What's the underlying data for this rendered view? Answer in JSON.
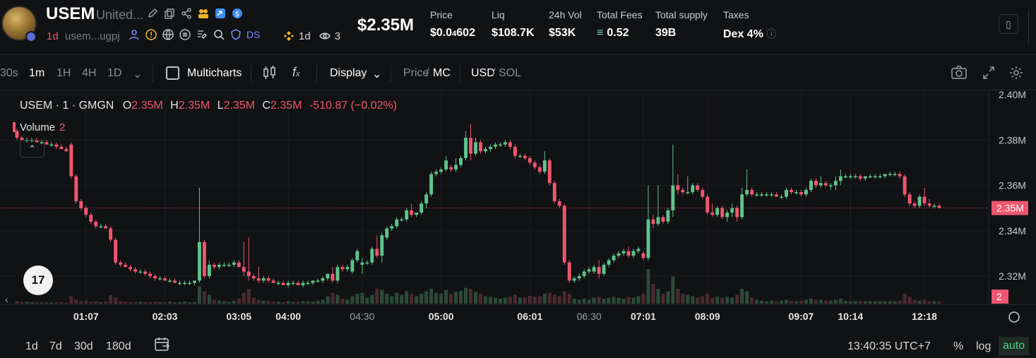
{
  "token": {
    "symbol": "USEM",
    "name_truncated": "United...",
    "age": "1d",
    "address": "usem...ugpj",
    "ds_label": "DS",
    "pair_age": "1d",
    "watchers": "3"
  },
  "market_cap": "$2.35M",
  "stats": [
    {
      "label": "Price",
      "value_main": "$0.0",
      "value_sub": "4",
      "value_tail": "602"
    },
    {
      "label": "Liq",
      "value_main": "$108.7K"
    },
    {
      "label": "24h Vol",
      "value_main": "$53K"
    },
    {
      "label": "Total Fees",
      "value_main": "0.52"
    },
    {
      "label": "Total supply",
      "value_main": "39B"
    },
    {
      "label": "Taxes",
      "value_main": "Dex 4%"
    }
  ],
  "toolbar": {
    "intervals": [
      "30s",
      "1m",
      "1H",
      "4H",
      "1D"
    ],
    "active_interval": "1m",
    "multicharts": "Multicharts",
    "display": "Display",
    "price": "Price",
    "mc": "MC",
    "usd": "USD",
    "sol": "SOL"
  },
  "legend": {
    "title": "USEM · 1 · GMGN",
    "o_label": "O",
    "o": "2.35M",
    "h_label": "H",
    "h": "2.35M",
    "l_label": "L",
    "l": "2.35M",
    "c_label": "C",
    "c": "2.35M",
    "change": "-510.87 (−0.02%)",
    "volume_label": "Volume",
    "volume_value": "2",
    "tv_logo": "17"
  },
  "bottom": {
    "ranges": [
      "1d",
      "7d",
      "30d",
      "180d"
    ],
    "time": "13:40:35 UTC+7",
    "percent": "%",
    "log": "log",
    "auto": "auto"
  },
  "colors": {
    "up": "#5fc48c",
    "down": "#f0566f",
    "bg": "#111214",
    "grid": "#1e2023"
  },
  "chart_data": {
    "type": "candlestick",
    "ylim": [
      2.31,
      2.4
    ],
    "y_ticks": [
      "2.32M",
      "2.34M",
      "2.36M",
      "2.38M",
      "2.40M"
    ],
    "y_tick_values": [
      2.32,
      2.34,
      2.36,
      2.38,
      2.4
    ],
    "last_price_label": "2.35M",
    "last_price": 2.35,
    "volume_label": "2",
    "x_tick_labels": [
      "01:07",
      "02:03",
      "03:05",
      "04:00",
      "04:30",
      "05:00",
      "06:01",
      "06:30",
      "07:01",
      "08:09",
      "09:07",
      "10:14",
      "12:18"
    ],
    "x_tick_index": [
      14,
      30,
      45,
      55,
      70,
      86,
      104,
      116,
      127,
      140,
      159,
      169,
      184
    ],
    "candles": [
      [
        2.384,
        2.385,
        2.38,
        2.381
      ],
      [
        2.381,
        2.382,
        2.38,
        2.38
      ],
      [
        2.38,
        2.381,
        2.379,
        2.38
      ],
      [
        2.38,
        2.381,
        2.379,
        2.38
      ],
      [
        2.38,
        2.381,
        2.379,
        2.379
      ],
      [
        2.379,
        2.38,
        2.378,
        2.379
      ],
      [
        2.379,
        2.38,
        2.378,
        2.378
      ],
      [
        2.378,
        2.379,
        2.377,
        2.378
      ],
      [
        2.378,
        2.379,
        2.376,
        2.377
      ],
      [
        2.377,
        2.378,
        2.376,
        2.376
      ],
      [
        2.376,
        2.377,
        2.375,
        2.375
      ],
      [
        2.378,
        2.379,
        2.363,
        2.364
      ],
      [
        2.364,
        2.365,
        2.352,
        2.353
      ],
      [
        2.353,
        2.354,
        2.349,
        2.35
      ],
      [
        2.35,
        2.351,
        2.346,
        2.347
      ],
      [
        2.347,
        2.348,
        2.343,
        2.344
      ],
      [
        2.344,
        2.345,
        2.341,
        2.342
      ],
      [
        2.342,
        2.343,
        2.341,
        2.342
      ],
      [
        2.342,
        2.343,
        2.341,
        2.341
      ],
      [
        2.341,
        2.342,
        2.335,
        2.336
      ],
      [
        2.336,
        2.337,
        2.325,
        2.326
      ],
      [
        2.326,
        2.327,
        2.324,
        2.325
      ],
      [
        2.325,
        2.326,
        2.324,
        2.324
      ],
      [
        2.324,
        2.325,
        2.322,
        2.323
      ],
      [
        2.323,
        2.324,
        2.321,
        2.322
      ],
      [
        2.322,
        2.323,
        2.321,
        2.322
      ],
      [
        2.322,
        2.323,
        2.32,
        2.321
      ],
      [
        2.321,
        2.322,
        2.319,
        2.32
      ],
      [
        2.32,
        2.321,
        2.318,
        2.319
      ],
      [
        2.319,
        2.32,
        2.318,
        2.319
      ],
      [
        2.319,
        2.32,
        2.318,
        2.318
      ],
      [
        2.318,
        2.319,
        2.317,
        2.318
      ],
      [
        2.318,
        2.319,
        2.317,
        2.317
      ],
      [
        2.317,
        2.318,
        2.316,
        2.317
      ],
      [
        2.317,
        2.318,
        2.316,
        2.317
      ],
      [
        2.317,
        2.318,
        2.316,
        2.317
      ],
      [
        2.317,
        2.318,
        2.316,
        2.318
      ],
      [
        2.318,
        2.359,
        2.317,
        2.335
      ],
      [
        2.335,
        2.336,
        2.319,
        2.32
      ],
      [
        2.32,
        2.327,
        2.319,
        2.325
      ],
      [
        2.325,
        2.326,
        2.323,
        2.324
      ],
      [
        2.324,
        2.326,
        2.323,
        2.325
      ],
      [
        2.325,
        2.326,
        2.324,
        2.325
      ],
      [
        2.325,
        2.326,
        2.324,
        2.325
      ],
      [
        2.325,
        2.327,
        2.324,
        2.326
      ],
      [
        2.326,
        2.327,
        2.324,
        2.324
      ],
      [
        2.324,
        2.335,
        2.32,
        2.322
      ],
      [
        2.322,
        2.337,
        2.318,
        2.32
      ],
      [
        2.32,
        2.321,
        2.318,
        2.319
      ],
      [
        2.319,
        2.324,
        2.317,
        2.318
      ],
      [
        2.318,
        2.32,
        2.317,
        2.319
      ],
      [
        2.319,
        2.32,
        2.317,
        2.318
      ],
      [
        2.318,
        2.319,
        2.317,
        2.317
      ],
      [
        2.317,
        2.318,
        2.316,
        2.317
      ],
      [
        2.317,
        2.318,
        2.316,
        2.316
      ],
      [
        2.316,
        2.318,
        2.315,
        2.317
      ],
      [
        2.317,
        2.318,
        2.316,
        2.317
      ],
      [
        2.317,
        2.318,
        2.316,
        2.316
      ],
      [
        2.316,
        2.318,
        2.315,
        2.317
      ],
      [
        2.317,
        2.318,
        2.316,
        2.317
      ],
      [
        2.317,
        2.318,
        2.316,
        2.318
      ],
      [
        2.318,
        2.319,
        2.317,
        2.318
      ],
      [
        2.318,
        2.32,
        2.317,
        2.319
      ],
      [
        2.319,
        2.321,
        2.318,
        2.321
      ],
      [
        2.321,
        2.324,
        2.317,
        2.318
      ],
      [
        2.318,
        2.325,
        2.317,
        2.324
      ],
      [
        2.324,
        2.325,
        2.322,
        2.323
      ],
      [
        2.323,
        2.325,
        2.322,
        2.324
      ],
      [
        2.322,
        2.328,
        2.321,
        2.327
      ],
      [
        2.327,
        2.332,
        2.326,
        2.331
      ],
      [
        2.325,
        2.328,
        2.321,
        2.326
      ],
      [
        2.326,
        2.327,
        2.325,
        2.326
      ],
      [
        2.326,
        2.333,
        2.325,
        2.332
      ],
      [
        2.332,
        2.338,
        2.328,
        2.329
      ],
      [
        2.329,
        2.339,
        2.326,
        2.338
      ],
      [
        2.337,
        2.342,
        2.336,
        2.341
      ],
      [
        2.341,
        2.343,
        2.34,
        2.342
      ],
      [
        2.342,
        2.346,
        2.341,
        2.345
      ],
      [
        2.345,
        2.346,
        2.344,
        2.345
      ],
      [
        2.345,
        2.35,
        2.344,
        2.349
      ],
      [
        2.349,
        2.352,
        2.346,
        2.347
      ],
      [
        2.347,
        2.348,
        2.346,
        2.348
      ],
      [
        2.348,
        2.353,
        2.347,
        2.352
      ],
      [
        2.352,
        2.357,
        2.35,
        2.356
      ],
      [
        2.356,
        2.366,
        2.355,
        2.365
      ],
      [
        2.365,
        2.367,
        2.364,
        2.366
      ],
      [
        2.366,
        2.368,
        2.365,
        2.367
      ],
      [
        2.367,
        2.373,
        2.366,
        2.371
      ],
      [
        2.368,
        2.369,
        2.366,
        2.367
      ],
      [
        2.367,
        2.372,
        2.366,
        2.369
      ],
      [
        2.369,
        2.373,
        2.368,
        2.372
      ],
      [
        2.372,
        2.384,
        2.371,
        2.381
      ],
      [
        2.381,
        2.387,
        2.371,
        2.374
      ],
      [
        2.374,
        2.381,
        2.373,
        2.379
      ],
      [
        2.379,
        2.38,
        2.374,
        2.375
      ],
      [
        2.375,
        2.377,
        2.374,
        2.376
      ],
      [
        2.376,
        2.378,
        2.375,
        2.377
      ],
      [
        2.377,
        2.379,
        2.376,
        2.378
      ],
      [
        2.378,
        2.379,
        2.377,
        2.378
      ],
      [
        2.378,
        2.38,
        2.377,
        2.379
      ],
      [
        2.379,
        2.38,
        2.376,
        2.377
      ],
      [
        2.377,
        2.378,
        2.372,
        2.373
      ],
      [
        2.373,
        2.374,
        2.372,
        2.373
      ],
      [
        2.373,
        2.374,
        2.371,
        2.372
      ],
      [
        2.372,
        2.373,
        2.369,
        2.37
      ],
      [
        2.37,
        2.371,
        2.367,
        2.368
      ],
      [
        2.368,
        2.369,
        2.365,
        2.366
      ],
      [
        2.366,
        2.375,
        2.365,
        2.371
      ],
      [
        2.371,
        2.372,
        2.36,
        2.361
      ],
      [
        2.361,
        2.362,
        2.352,
        2.353
      ],
      [
        2.353,
        2.354,
        2.35,
        2.351
      ],
      [
        2.351,
        2.352,
        2.325,
        2.326
      ],
      [
        2.326,
        2.327,
        2.317,
        2.318
      ],
      [
        2.318,
        2.32,
        2.317,
        2.319
      ],
      [
        2.319,
        2.321,
        2.318,
        2.32
      ],
      [
        2.32,
        2.323,
        2.319,
        2.322
      ],
      [
        2.322,
        2.324,
        2.321,
        2.323
      ],
      [
        2.322,
        2.325,
        2.321,
        2.324
      ],
      [
        2.324,
        2.327,
        2.319,
        2.321
      ],
      [
        2.321,
        2.326,
        2.32,
        2.325
      ],
      [
        2.325,
        2.328,
        2.324,
        2.327
      ],
      [
        2.327,
        2.33,
        2.326,
        2.329
      ],
      [
        2.329,
        2.331,
        2.328,
        2.33
      ],
      [
        2.33,
        2.332,
        2.329,
        2.331
      ],
      [
        2.331,
        2.333,
        2.328,
        2.329
      ],
      [
        2.329,
        2.332,
        2.328,
        2.331
      ],
      [
        2.331,
        2.333,
        2.33,
        2.332
      ],
      [
        2.33,
        2.331,
        2.327,
        2.328
      ],
      [
        2.328,
        2.36,
        2.327,
        2.345
      ],
      [
        2.345,
        2.347,
        2.341,
        2.343
      ],
      [
        2.343,
        2.36,
        2.342,
        2.346
      ],
      [
        2.346,
        2.347,
        2.343,
        2.344
      ],
      [
        2.344,
        2.35,
        2.343,
        2.349
      ],
      [
        2.349,
        2.378,
        2.346,
        2.36
      ],
      [
        2.36,
        2.365,
        2.356,
        2.358
      ],
      [
        2.358,
        2.359,
        2.356,
        2.357
      ],
      [
        2.357,
        2.364,
        2.356,
        2.357
      ],
      [
        2.357,
        2.361,
        2.356,
        2.36
      ],
      [
        2.36,
        2.361,
        2.357,
        2.358
      ],
      [
        2.358,
        2.359,
        2.354,
        2.355
      ],
      [
        2.355,
        2.356,
        2.347,
        2.348
      ],
      [
        2.348,
        2.352,
        2.346,
        2.347
      ],
      [
        2.347,
        2.351,
        2.346,
        2.35
      ],
      [
        2.35,
        2.351,
        2.345,
        2.346
      ],
      [
        2.346,
        2.349,
        2.344,
        2.348
      ],
      [
        2.348,
        2.352,
        2.346,
        2.35
      ],
      [
        2.35,
        2.351,
        2.344,
        2.346
      ],
      [
        2.346,
        2.359,
        2.345,
        2.356
      ],
      [
        2.356,
        2.367,
        2.355,
        2.358
      ],
      [
        2.358,
        2.359,
        2.355,
        2.356
      ],
      [
        2.356,
        2.357,
        2.355,
        2.356
      ],
      [
        2.356,
        2.357,
        2.355,
        2.356
      ],
      [
        2.356,
        2.357,
        2.355,
        2.356
      ],
      [
        2.356,
        2.357,
        2.355,
        2.356
      ],
      [
        2.356,
        2.357,
        2.355,
        2.355
      ],
      [
        2.355,
        2.356,
        2.354,
        2.355
      ],
      [
        2.355,
        2.359,
        2.354,
        2.358
      ],
      [
        2.358,
        2.359,
        2.356,
        2.357
      ],
      [
        2.357,
        2.358,
        2.356,
        2.357
      ],
      [
        2.357,
        2.358,
        2.355,
        2.356
      ],
      [
        2.356,
        2.359,
        2.355,
        2.358
      ],
      [
        2.358,
        2.363,
        2.357,
        2.362
      ],
      [
        2.362,
        2.363,
        2.359,
        2.36
      ],
      [
        2.36,
        2.364,
        2.359,
        2.361
      ],
      [
        2.361,
        2.362,
        2.359,
        2.36
      ],
      [
        2.36,
        2.361,
        2.358,
        2.36
      ],
      [
        2.36,
        2.364,
        2.358,
        2.362
      ],
      [
        2.362,
        2.367,
        2.36,
        2.364
      ],
      [
        2.364,
        2.365,
        2.363,
        2.364
      ],
      [
        2.364,
        2.365,
        2.363,
        2.364
      ],
      [
        2.364,
        2.365,
        2.363,
        2.364
      ],
      [
        2.364,
        2.365,
        2.362,
        2.363
      ],
      [
        2.363,
        2.364,
        2.362,
        2.364
      ],
      [
        2.364,
        2.365,
        2.363,
        2.364
      ],
      [
        2.364,
        2.365,
        2.363,
        2.364
      ],
      [
        2.364,
        2.365,
        2.363,
        2.364
      ],
      [
        2.364,
        2.365,
        2.363,
        2.365
      ],
      [
        2.365,
        2.366,
        2.364,
        2.365
      ],
      [
        2.365,
        2.366,
        2.364,
        2.365
      ],
      [
        2.365,
        2.366,
        2.363,
        2.364
      ],
      [
        2.364,
        2.365,
        2.355,
        2.356
      ],
      [
        2.356,
        2.357,
        2.351,
        2.352
      ],
      [
        2.352,
        2.353,
        2.35,
        2.351
      ],
      [
        2.351,
        2.356,
        2.35,
        2.355
      ],
      [
        2.355,
        2.359,
        2.351,
        2.352
      ],
      [
        2.352,
        2.354,
        2.35,
        2.351
      ],
      [
        2.351,
        2.352,
        2.35,
        2.351
      ],
      [
        2.351,
        2.352,
        2.35,
        2.35
      ]
    ],
    "volume_heights": [
      0.05,
      0.03,
      0.04,
      0.03,
      0.03,
      0.02,
      0.03,
      0.02,
      0.03,
      0.03,
      0.02,
      0.15,
      0.08,
      0.05,
      0.06,
      0.04,
      0.05,
      0.03,
      0.04,
      0.18,
      0.12,
      0.05,
      0.04,
      0.03,
      0.03,
      0.04,
      0.03,
      0.03,
      0.04,
      0.03,
      0.03,
      0.04,
      0.03,
      0.03,
      0.04,
      0.03,
      0.03,
      0.35,
      0.25,
      0.18,
      0.08,
      0.06,
      0.05,
      0.04,
      0.06,
      0.1,
      0.22,
      0.3,
      0.12,
      0.08,
      0.06,
      0.05,
      0.04,
      0.04,
      0.03,
      0.05,
      0.04,
      0.04,
      0.05,
      0.05,
      0.04,
      0.06,
      0.08,
      0.15,
      0.22,
      0.18,
      0.1,
      0.08,
      0.15,
      0.2,
      0.22,
      0.12,
      0.18,
      0.3,
      0.28,
      0.2,
      0.15,
      0.22,
      0.18,
      0.25,
      0.2,
      0.15,
      0.2,
      0.25,
      0.3,
      0.22,
      0.2,
      0.28,
      0.2,
      0.24,
      0.26,
      0.32,
      0.3,
      0.24,
      0.2,
      0.15,
      0.14,
      0.12,
      0.1,
      0.12,
      0.14,
      0.18,
      0.12,
      0.12,
      0.16,
      0.14,
      0.15,
      0.2,
      0.22,
      0.18,
      0.15,
      0.25,
      0.2,
      0.1,
      0.08,
      0.1,
      0.08,
      0.12,
      0.14,
      0.1,
      0.12,
      0.14,
      0.12,
      0.1,
      0.14,
      0.12,
      0.15,
      0.2,
      0.7,
      0.4,
      0.3,
      0.2,
      0.25,
      0.55,
      0.3,
      0.2,
      0.18,
      0.15,
      0.12,
      0.15,
      0.2,
      0.12,
      0.14,
      0.12,
      0.14,
      0.12,
      0.18,
      0.3,
      0.25,
      0.12,
      0.08,
      0.06,
      0.05,
      0.06,
      0.05,
      0.06,
      0.08,
      0.06,
      0.05,
      0.06,
      0.08,
      0.1,
      0.08,
      0.08,
      0.06,
      0.06,
      0.08,
      0.1,
      0.06,
      0.05,
      0.05,
      0.05,
      0.05,
      0.05,
      0.05,
      0.05,
      0.05,
      0.05,
      0.05,
      0.06,
      0.2,
      0.14,
      0.08,
      0.06,
      0.08,
      0.05,
      0.05,
      0.04
    ]
  }
}
